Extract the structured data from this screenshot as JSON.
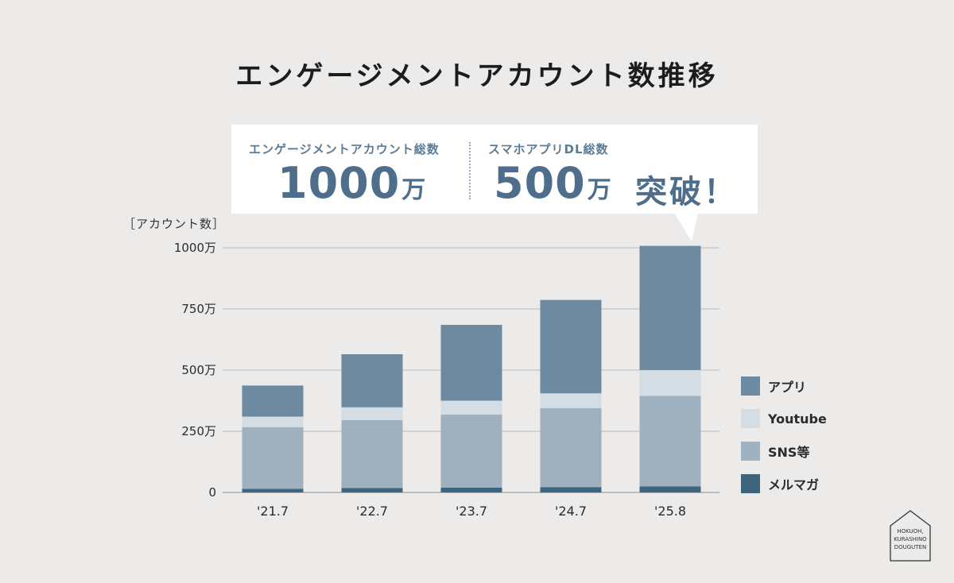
{
  "title": "エンゲージメントアカウント数推移",
  "callout": {
    "left_label": "エンゲージメントアカウント総数",
    "left_value": "1000",
    "left_unit": "万",
    "right_label": "スマホアプリDL総数",
    "right_value": "500",
    "right_unit": "万",
    "exclaim": "突破！"
  },
  "axis_unit_label": "［アカウント数］",
  "chart_data": {
    "type": "bar",
    "stacked": true,
    "title": "エンゲージメントアカウント数推移",
    "ylabel": "［アカウント数］",
    "ylim": [
      0,
      1000
    ],
    "ytick_values": [
      0,
      250,
      500,
      750,
      1000
    ],
    "ytick_labels": [
      "0",
      "250万",
      "500万",
      "750万",
      "1000万"
    ],
    "categories": [
      "'21.7",
      "'22.7",
      "'23.7",
      "'24.7",
      "'25.8"
    ],
    "series": [
      {
        "name": "メルマガ",
        "color": "#3d6580",
        "values": [
          15,
          18,
          20,
          22,
          25
        ]
      },
      {
        "name": "SNS等",
        "color": "#9fb0bf",
        "values": [
          252,
          278,
          298,
          323,
          370
        ]
      },
      {
        "name": "Youtube",
        "color": "#d4dde4",
        "values": [
          43,
          52,
          57,
          60,
          105
        ]
      },
      {
        "name": "アプリ",
        "color": "#6d8aa1",
        "values": [
          127,
          217,
          310,
          382,
          508
        ]
      }
    ]
  },
  "legend": [
    {
      "label": "アプリ",
      "color": "#6d8aa1"
    },
    {
      "label": "Youtube",
      "color": "#d4dde4"
    },
    {
      "label": "SNS等",
      "color": "#9fb0bf"
    },
    {
      "label": "メルマガ",
      "color": "#3d6580"
    }
  ],
  "logo": {
    "line1": "HOKUOH,",
    "line2": "KURASHINO",
    "line3": "DOUGUTEN"
  }
}
